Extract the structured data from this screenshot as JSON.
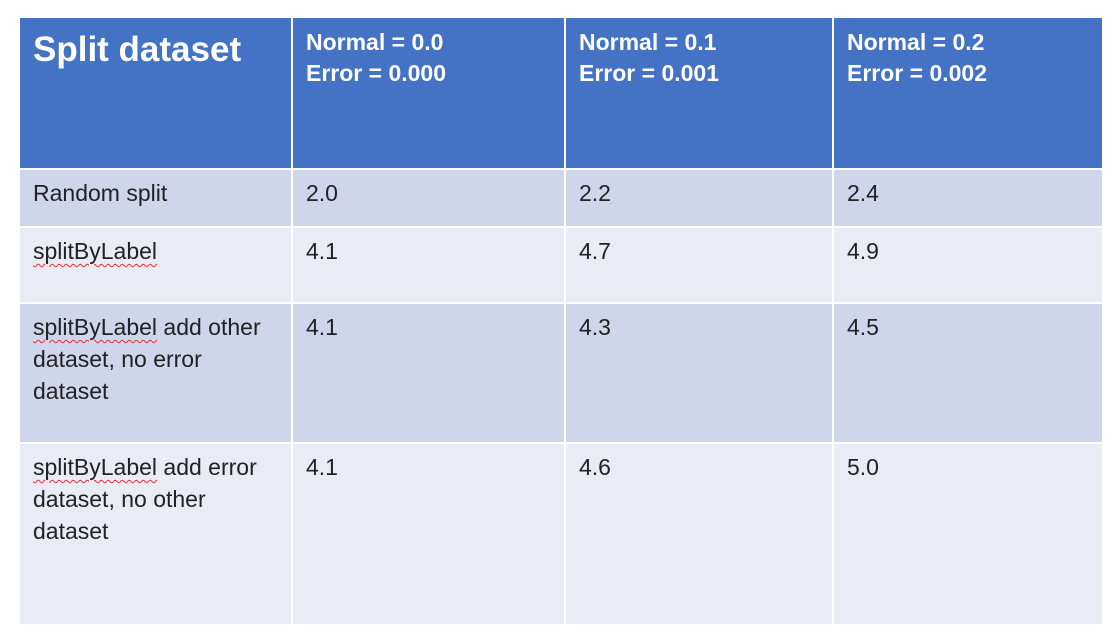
{
  "table": {
    "title": "Split dataset",
    "columns": [
      {
        "normal": "Normal = 0.0",
        "error": "Error = 0.000"
      },
      {
        "normal": "Normal = 0.1",
        "error": "Error = 0.001"
      },
      {
        "normal": "Normal = 0.2",
        "error": "Error = 0.002"
      }
    ],
    "rows": [
      {
        "label_prefix": "Random split",
        "label_rest": "",
        "values": [
          "2.0",
          "2.2",
          "2.4"
        ]
      },
      {
        "label_prefix": "splitByLabel",
        "label_rest": "",
        "values": [
          "4.1",
          "4.7",
          "4.9"
        ]
      },
      {
        "label_prefix": "splitByLabel",
        "label_rest": " add other dataset, no error dataset",
        "values": [
          "4.1",
          "4.3",
          "4.5"
        ]
      },
      {
        "label_prefix": "splitByLabel",
        "label_rest": " add error dataset, no other dataset",
        "values": [
          "4.1",
          "4.6",
          "5.0"
        ]
      }
    ]
  },
  "colors": {
    "header": "#4472c4",
    "row_band_dark": "#cfd5ea",
    "row_band_light": "#e9ebf5",
    "spellcheck_underline": "#e03030"
  }
}
